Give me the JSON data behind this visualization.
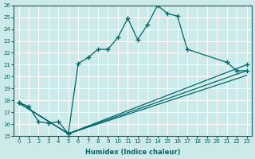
{
  "xlabel": "Humidex (Indice chaleur)",
  "bg_color": "#cceaea",
  "line_color": "#006666",
  "grid_color": "#b8d8d8",
  "xlim": [
    -0.5,
    23.5
  ],
  "ylim": [
    15,
    26
  ],
  "xticks": [
    0,
    1,
    2,
    3,
    4,
    5,
    6,
    7,
    8,
    9,
    10,
    11,
    12,
    13,
    14,
    15,
    16,
    17,
    18,
    19,
    20,
    21,
    22,
    23
  ],
  "yticks": [
    15,
    16,
    17,
    18,
    19,
    20,
    21,
    22,
    23,
    24,
    25,
    26
  ],
  "line1_x": [
    0,
    1,
    2,
    3,
    4,
    5,
    6,
    7,
    8,
    9,
    10,
    11,
    12,
    13,
    14,
    15,
    16,
    17,
    21,
    22,
    23
  ],
  "line1_y": [
    17.8,
    17.5,
    16.2,
    16.1,
    16.2,
    15.2,
    21.1,
    21.6,
    22.3,
    22.3,
    23.3,
    24.9,
    23.1,
    24.4,
    26.0,
    25.3,
    25.1,
    22.3,
    21.2,
    20.5,
    20.5
  ],
  "line2_x": [
    0,
    5,
    23
  ],
  "line2_y": [
    17.8,
    15.2,
    21.0
  ],
  "line3_x": [
    0,
    5,
    23
  ],
  "line3_y": [
    17.8,
    15.2,
    20.5
  ],
  "line4_x": [
    0,
    5,
    23
  ],
  "line4_y": [
    17.8,
    15.2,
    20.1
  ]
}
